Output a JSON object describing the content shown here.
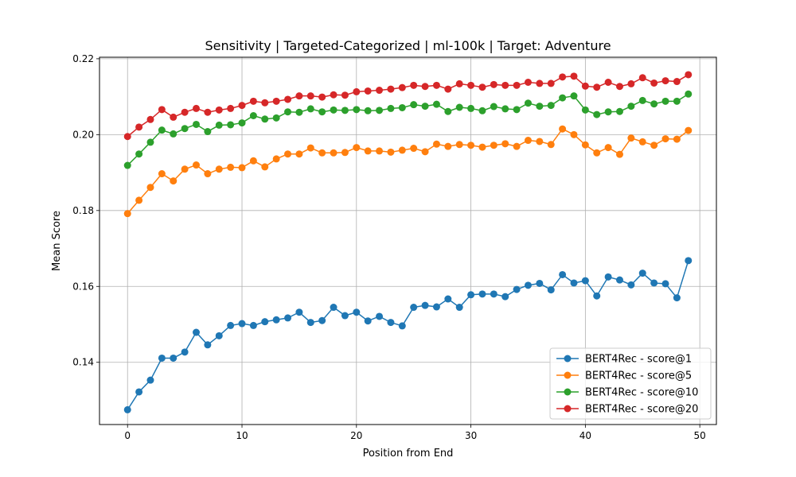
{
  "chart_data": {
    "type": "line",
    "title": "Sensitivity | Targeted-Categorized | ml-100k | Target: Adventure",
    "xlabel": "Position from End",
    "ylabel": "Mean Score",
    "xlim": [
      -2.45,
      51.45
    ],
    "ylim": [
      0.1236,
      0.2204
    ],
    "xticks": [
      0,
      10,
      20,
      30,
      40,
      50
    ],
    "yticks": [
      0.14,
      0.16,
      0.18,
      0.2,
      0.22
    ],
    "ytick_labels": [
      "0.14",
      "0.16",
      "0.18",
      "0.20",
      "0.22"
    ],
    "grid": true,
    "legend_position": "bottom-right",
    "x": [
      0,
      1,
      2,
      3,
      4,
      5,
      6,
      7,
      8,
      9,
      10,
      11,
      12,
      13,
      14,
      15,
      16,
      17,
      18,
      19,
      20,
      21,
      22,
      23,
      24,
      25,
      26,
      27,
      28,
      29,
      30,
      31,
      32,
      33,
      34,
      35,
      36,
      37,
      38,
      39,
      40,
      41,
      42,
      43,
      44,
      45,
      46,
      47,
      48,
      49
    ],
    "series": [
      {
        "name": "BERT4Rec - score@1",
        "color": "#1f77b4",
        "values": [
          0.1275,
          0.1322,
          0.1353,
          0.1411,
          0.1411,
          0.1427,
          0.1479,
          0.1446,
          0.147,
          0.1497,
          0.1502,
          0.1497,
          0.1507,
          0.1512,
          0.1517,
          0.1532,
          0.1505,
          0.151,
          0.1545,
          0.1523,
          0.1532,
          0.1509,
          0.1521,
          0.1505,
          0.1496,
          0.1545,
          0.155,
          0.1546,
          0.1567,
          0.1545,
          0.1578,
          0.158,
          0.158,
          0.1573,
          0.1592,
          0.1603,
          0.1608,
          0.1591,
          0.1631,
          0.1609,
          0.1615,
          0.1575,
          0.1625,
          0.1617,
          0.1604,
          0.1635,
          0.1609,
          0.1607,
          0.157,
          0.1668
        ]
      },
      {
        "name": "BERT4Rec - score@5",
        "color": "#ff7f0e",
        "values": [
          0.1792,
          0.1827,
          0.1861,
          0.1897,
          0.1878,
          0.1909,
          0.192,
          0.1897,
          0.1909,
          0.1914,
          0.1913,
          0.1931,
          0.1915,
          0.1936,
          0.1949,
          0.1949,
          0.1965,
          0.1952,
          0.1952,
          0.1953,
          0.1966,
          0.1957,
          0.1957,
          0.1954,
          0.1959,
          0.1964,
          0.1955,
          0.1975,
          0.1969,
          0.1974,
          0.1972,
          0.1967,
          0.1972,
          0.1976,
          0.1969,
          0.1985,
          0.1982,
          0.1974,
          0.2015,
          0.2,
          0.1973,
          0.1952,
          0.1966,
          0.1948,
          0.1991,
          0.1981,
          0.1972,
          0.1989,
          0.1988,
          0.2011
        ]
      },
      {
        "name": "BERT4Rec - score@10",
        "color": "#2ca02c",
        "values": [
          0.1919,
          0.1949,
          0.198,
          0.2012,
          0.2002,
          0.2016,
          0.2027,
          0.2008,
          0.2025,
          0.2026,
          0.2031,
          0.205,
          0.2041,
          0.2044,
          0.206,
          0.2059,
          0.2068,
          0.206,
          0.2065,
          0.2064,
          0.2066,
          0.2063,
          0.2064,
          0.2069,
          0.2071,
          0.2079,
          0.2075,
          0.208,
          0.2061,
          0.2072,
          0.2069,
          0.2063,
          0.2074,
          0.2068,
          0.2066,
          0.2083,
          0.2075,
          0.2077,
          0.2097,
          0.2102,
          0.2065,
          0.2053,
          0.206,
          0.2061,
          0.2075,
          0.209,
          0.2081,
          0.2088,
          0.2088,
          0.2107
        ]
      },
      {
        "name": "BERT4Rec - score@20",
        "color": "#d62728",
        "values": [
          0.1995,
          0.202,
          0.204,
          0.2066,
          0.2046,
          0.2059,
          0.2069,
          0.2059,
          0.2065,
          0.2069,
          0.2077,
          0.2088,
          0.2084,
          0.2088,
          0.2093,
          0.2102,
          0.2102,
          0.2099,
          0.2105,
          0.2104,
          0.2113,
          0.2115,
          0.2117,
          0.212,
          0.2124,
          0.213,
          0.2127,
          0.213,
          0.212,
          0.2134,
          0.213,
          0.2125,
          0.2132,
          0.213,
          0.213,
          0.2138,
          0.2135,
          0.2135,
          0.2152,
          0.2154,
          0.2128,
          0.2125,
          0.2138,
          0.2127,
          0.2134,
          0.215,
          0.2136,
          0.2142,
          0.214,
          0.2158
        ]
      }
    ]
  }
}
